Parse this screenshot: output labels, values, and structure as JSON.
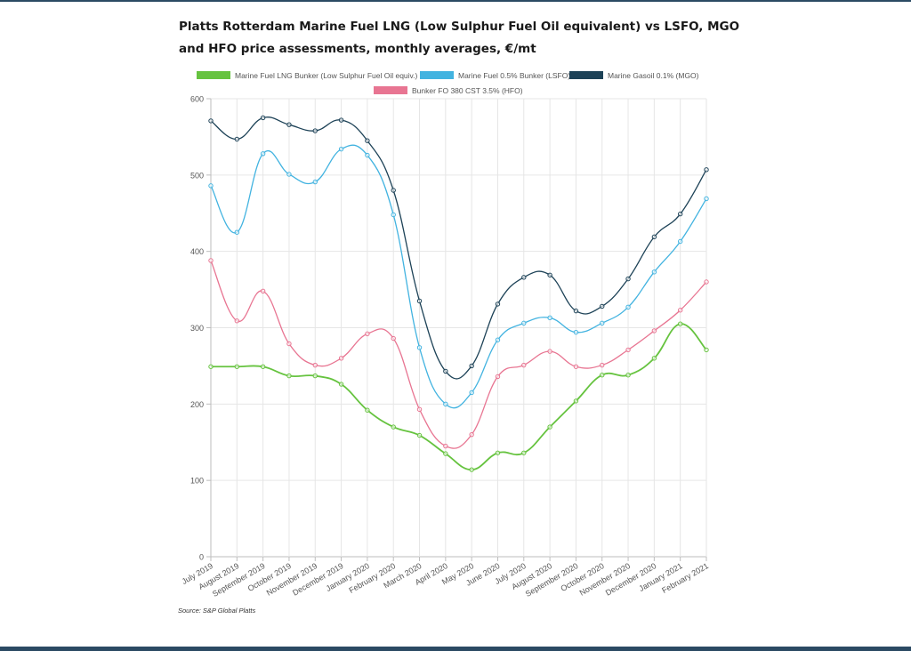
{
  "title": "Platts Rotterdam Marine Fuel LNG (Low Sulphur Fuel Oil equivalent) vs LSFO, MGO and HFO price assessments, monthly averages, €/mt",
  "source": "Source: S&P Global Platts",
  "chart_data": {
    "type": "line",
    "categories": [
      "July 2019",
      "August 2019",
      "September 2019",
      "October 2019",
      "November 2019",
      "December 2019",
      "January 2020",
      "February 2020",
      "March 2020",
      "April 2020",
      "May 2020",
      "June 2020",
      "July 2020",
      "August 2020",
      "September 2020",
      "October 2020",
      "November 2020",
      "December 2020",
      "January 2021",
      "February 2021"
    ],
    "ylim": [
      0,
      600
    ],
    "yticks": [
      0,
      100,
      200,
      300,
      400,
      500,
      600
    ],
    "grid": true,
    "legend_position": "top",
    "series": [
      {
        "name": "Marine Fuel LNG Bunker (Low Sulphur Fuel Oil equiv.)",
        "color": "#66c33f",
        "values": [
          249,
          249,
          249,
          237,
          237,
          226,
          192,
          170,
          159,
          135,
          114,
          136,
          136,
          170,
          204,
          238,
          238,
          260,
          305,
          271
        ]
      },
      {
        "name": "Marine Fuel 0.5% Bunker (LSFO)",
        "color": "#42b3e0",
        "values": [
          486,
          425,
          528,
          501,
          491,
          534,
          526,
          448,
          274,
          200,
          215,
          284,
          306,
          313,
          294,
          306,
          327,
          373,
          413,
          469
        ]
      },
      {
        "name": "Marine Gasoil 0.1% (MGO)",
        "color": "#1d4257",
        "values": [
          571,
          547,
          575,
          566,
          558,
          572,
          545,
          480,
          335,
          243,
          250,
          331,
          366,
          369,
          322,
          328,
          364,
          419,
          449,
          507
        ]
      },
      {
        "name": "Bunker FO 380 CST 3.5% (HFO)",
        "color": "#e87592",
        "values": [
          388,
          309,
          348,
          279,
          251,
          260,
          292,
          286,
          193,
          145,
          160,
          236,
          251,
          269,
          249,
          251,
          271,
          296,
          323,
          360
        ]
      }
    ]
  }
}
